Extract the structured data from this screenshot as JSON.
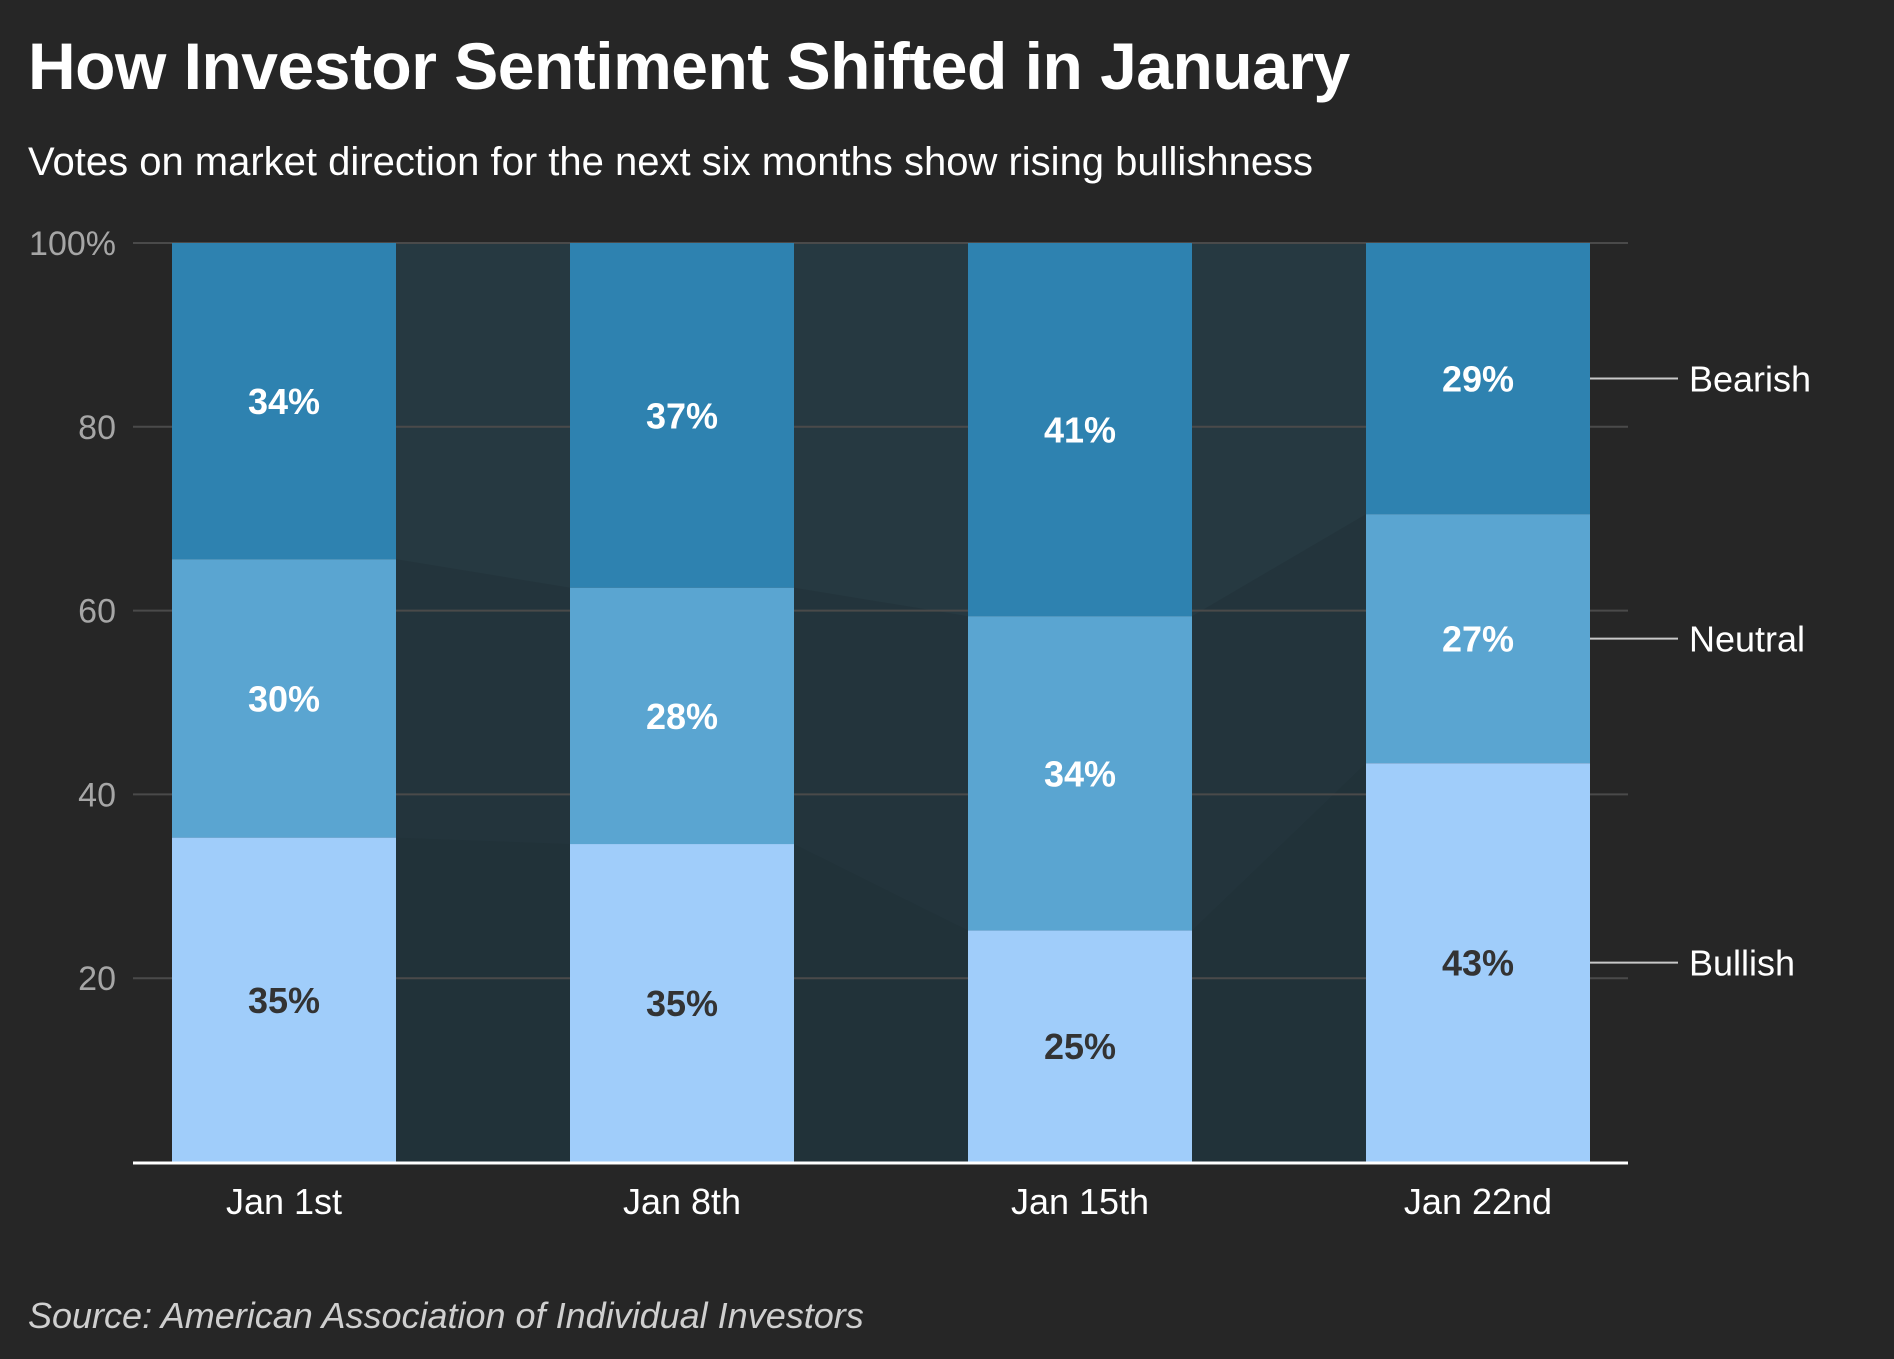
{
  "header": {
    "title": "How Investor Sentiment Shifted in January",
    "subtitle": "Votes on market direction for the next six months show rising bullishness"
  },
  "footer": {
    "source": "Source: American Association of Individual Investors"
  },
  "chart_data": {
    "type": "bar",
    "stacked": true,
    "categories": [
      "Jan 1st",
      "Jan 8th",
      "Jan 15th",
      "Jan 22nd"
    ],
    "series": [
      {
        "name": "Bullish",
        "values": [
          35.3,
          34.6,
          25.2,
          43.4
        ],
        "labels": [
          "35%",
          "35%",
          "25%",
          "43%"
        ],
        "color": "#a0cdfa",
        "label_color": "#333333"
      },
      {
        "name": "Neutral",
        "values": [
          30.3,
          27.9,
          34.2,
          27.1
        ],
        "labels": [
          "30%",
          "28%",
          "34%",
          "27%"
        ],
        "color": "#5aa5d1",
        "label_color": "#ffffff"
      },
      {
        "name": "Bearish",
        "values": [
          34.4,
          37.5,
          40.6,
          29.5
        ],
        "labels": [
          "34%",
          "37%",
          "41%",
          "29%"
        ],
        "color": "#2e82b0",
        "label_color": "#ffffff"
      }
    ],
    "y_ticks": [
      {
        "value": 100,
        "label": "100%"
      },
      {
        "value": 80,
        "label": "80"
      },
      {
        "value": 60,
        "label": "60"
      },
      {
        "value": 40,
        "label": "40"
      },
      {
        "value": 20,
        "label": "20"
      }
    ],
    "ylim": [
      0,
      100
    ],
    "grid": true,
    "legend": "right",
    "colors": {
      "background": "#262626",
      "band": "#263941",
      "gridline": "#4a4a4a",
      "axis": "#ffffff"
    }
  }
}
